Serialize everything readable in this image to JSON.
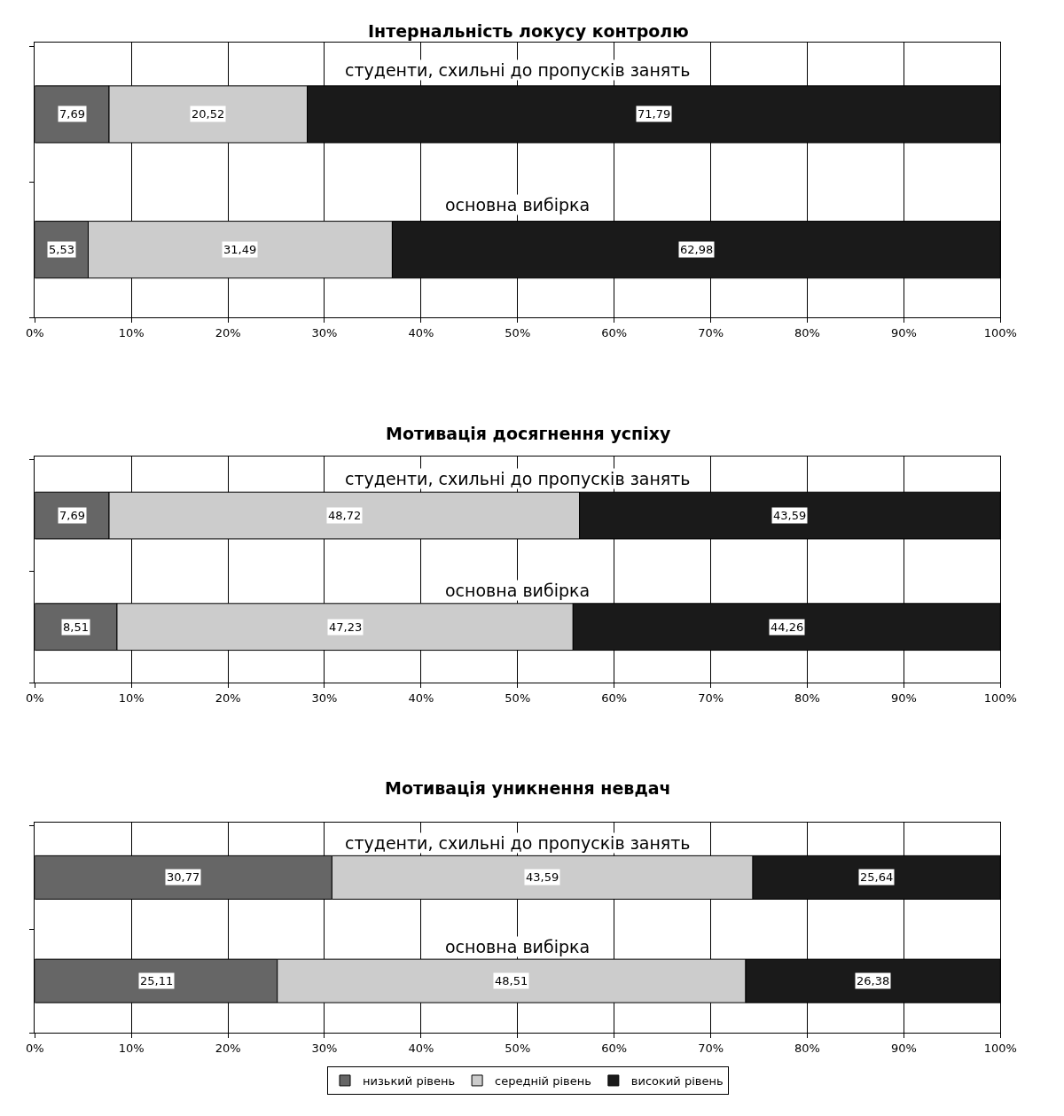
{
  "chart_data": [
    {
      "type": "bar",
      "orientation": "horizontal",
      "stacked": true,
      "title": "Інтернальність локусу контролю",
      "categories": [
        "студенти, схильні до пропусків занять",
        "основна вибірка"
      ],
      "series": [
        {
          "name": "низький рівень",
          "color": "#666666",
          "values": [
            7.69,
            5.53
          ],
          "value_labels": [
            "7,69",
            "5,53"
          ]
        },
        {
          "name": "середній рівень",
          "color": "#cccccc",
          "values": [
            20.52,
            31.49
          ],
          "value_labels": [
            "20,52",
            "31,49"
          ]
        },
        {
          "name": "високий рівень",
          "color": "#1a1a1a",
          "values": [
            71.79,
            62.98
          ],
          "value_labels": [
            "71,79",
            "62,98"
          ]
        }
      ],
      "xlim": [
        0,
        100
      ],
      "xticks": [
        {
          "value": 0,
          "label": "0%"
        },
        {
          "value": 10,
          "label": "10%"
        },
        {
          "value": 20,
          "label": "20%"
        },
        {
          "value": 30,
          "label": "30%"
        },
        {
          "value": 40,
          "label": "40%"
        },
        {
          "value": 50,
          "label": "50%"
        },
        {
          "value": 60,
          "label": "60%"
        },
        {
          "value": 70,
          "label": "70%"
        },
        {
          "value": 80,
          "label": "80%"
        },
        {
          "value": 90,
          "label": "90%"
        },
        {
          "value": 100,
          "label": "100%"
        }
      ],
      "grid": "x",
      "legend": "bottom",
      "tick_labels": "x"
    },
    {
      "type": "bar",
      "orientation": "horizontal",
      "stacked": true,
      "title": "Мотивація досягнення успіху",
      "categories": [
        "студенти, схильні до пропусків занять",
        "основна вибірка"
      ],
      "series": [
        {
          "color": "#666666",
          "values": [
            7.69,
            8.51
          ],
          "value_labels": [
            "7,69",
            "8,51"
          ]
        },
        {
          "color": "#cccccc",
          "values": [
            48.72,
            47.23
          ],
          "value_labels": [
            "48,72",
            "47,23"
          ]
        },
        {
          "color": "#1a1a1a",
          "values": [
            43.59,
            44.26
          ],
          "value_labels": [
            "43,59",
            "44,26"
          ]
        }
      ],
      "xlim": [
        0,
        100
      ],
      "xticks": [
        {
          "value": 0,
          "label": "0%"
        },
        {
          "value": 10,
          "label": "10%"
        },
        {
          "value": 20,
          "label": "20%"
        },
        {
          "value": 30,
          "label": "30%"
        },
        {
          "value": 40,
          "label": "40%"
        },
        {
          "value": 50,
          "label": "50%"
        },
        {
          "value": 60,
          "label": "60%"
        },
        {
          "value": 70,
          "label": "70%"
        },
        {
          "value": 80,
          "label": "80%"
        },
        {
          "value": 90,
          "label": "90%"
        },
        {
          "value": 100,
          "label": "100%"
        }
      ],
      "grid": "x",
      "tick_labels": "x"
    },
    {
      "type": "bar",
      "orientation": "horizontal",
      "stacked": true,
      "title": "Мотивація уникнення невдач",
      "categories": [
        "студенти, схильні до пропусків занять",
        "основна вибірка"
      ],
      "series": [
        {
          "color": "#666666",
          "values": [
            30.77,
            25.11
          ],
          "value_labels": [
            "30,77",
            "25,11"
          ]
        },
        {
          "color": "#cccccc",
          "values": [
            43.59,
            48.51
          ],
          "value_labels": [
            "43,59",
            "48,51"
          ]
        },
        {
          "color": "#1a1a1a",
          "values": [
            25.64,
            26.38
          ],
          "value_labels": [
            "25,64",
            "26,38"
          ]
        }
      ],
      "xlim": [
        0,
        100
      ],
      "xticks": [
        {
          "value": 0,
          "label": "0%"
        },
        {
          "value": 10,
          "label": "10%"
        },
        {
          "value": 20,
          "label": "20%"
        },
        {
          "value": 30,
          "label": "30%"
        },
        {
          "value": 40,
          "label": "40%"
        },
        {
          "value": 50,
          "label": "50%"
        },
        {
          "value": 60,
          "label": "60%"
        },
        {
          "value": 70,
          "label": "70%"
        },
        {
          "value": 80,
          "label": "80%"
        },
        {
          "value": 90,
          "label": "90%"
        },
        {
          "value": 100,
          "label": "100%"
        }
      ],
      "grid": "x",
      "tick_labels": "x"
    }
  ]
}
